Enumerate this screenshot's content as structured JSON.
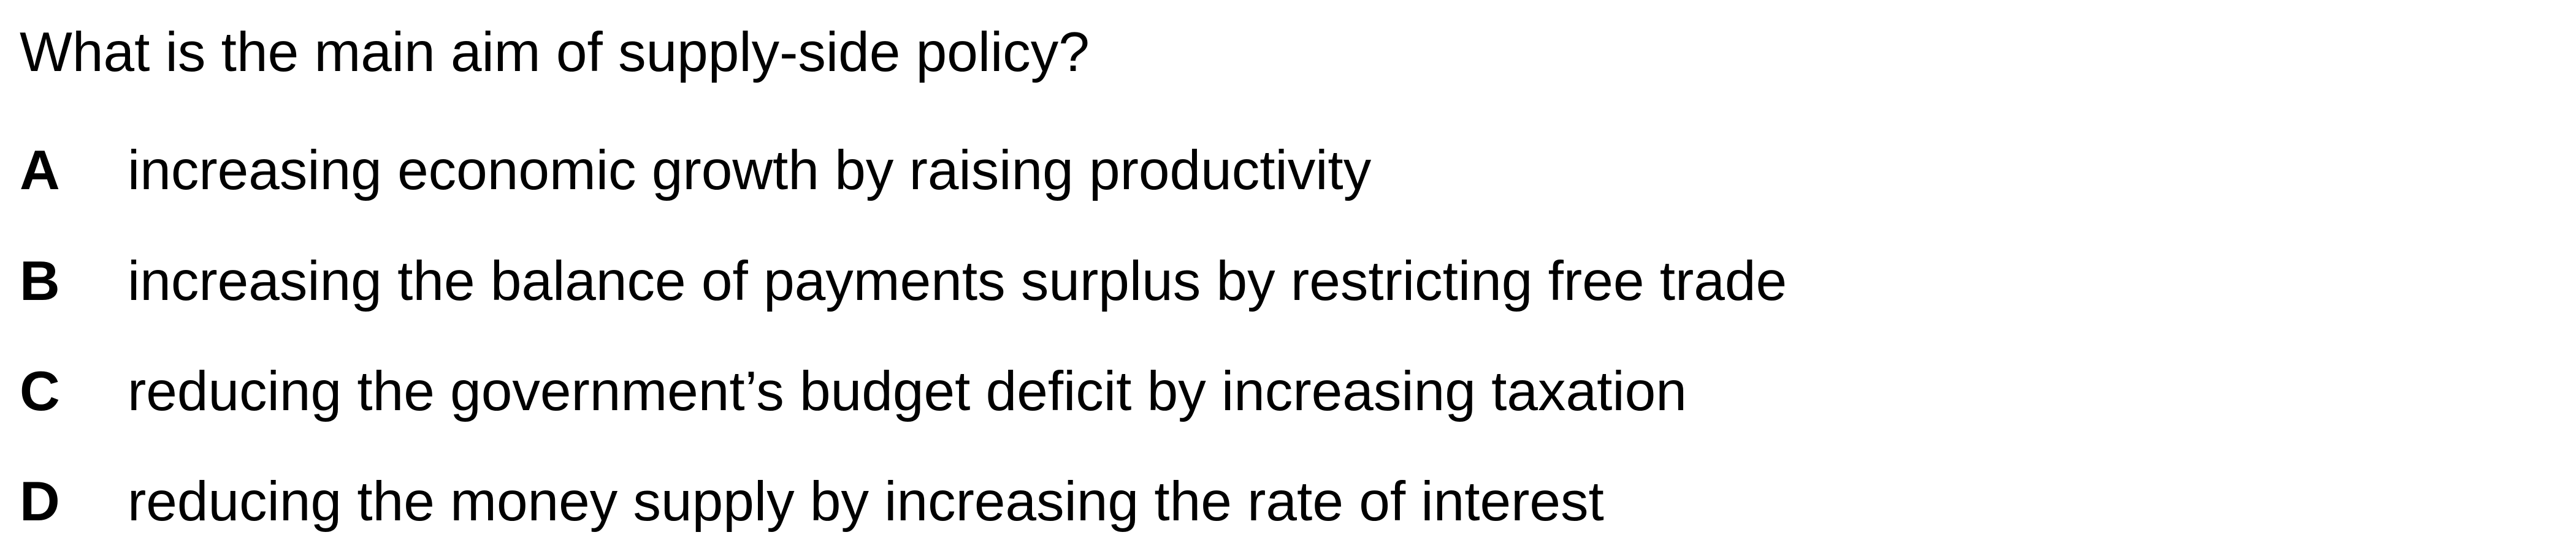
{
  "question": "What is the main aim of supply-side policy?",
  "options": [
    {
      "letter": "A",
      "text": "increasing economic growth by raising productivity"
    },
    {
      "letter": "B",
      "text": "increasing the balance of payments surplus by restricting free trade"
    },
    {
      "letter": "C",
      "text": "reducing the government’s budget deficit by increasing taxation"
    },
    {
      "letter": "D",
      "text": "reducing the money supply by increasing the rate of interest"
    }
  ]
}
